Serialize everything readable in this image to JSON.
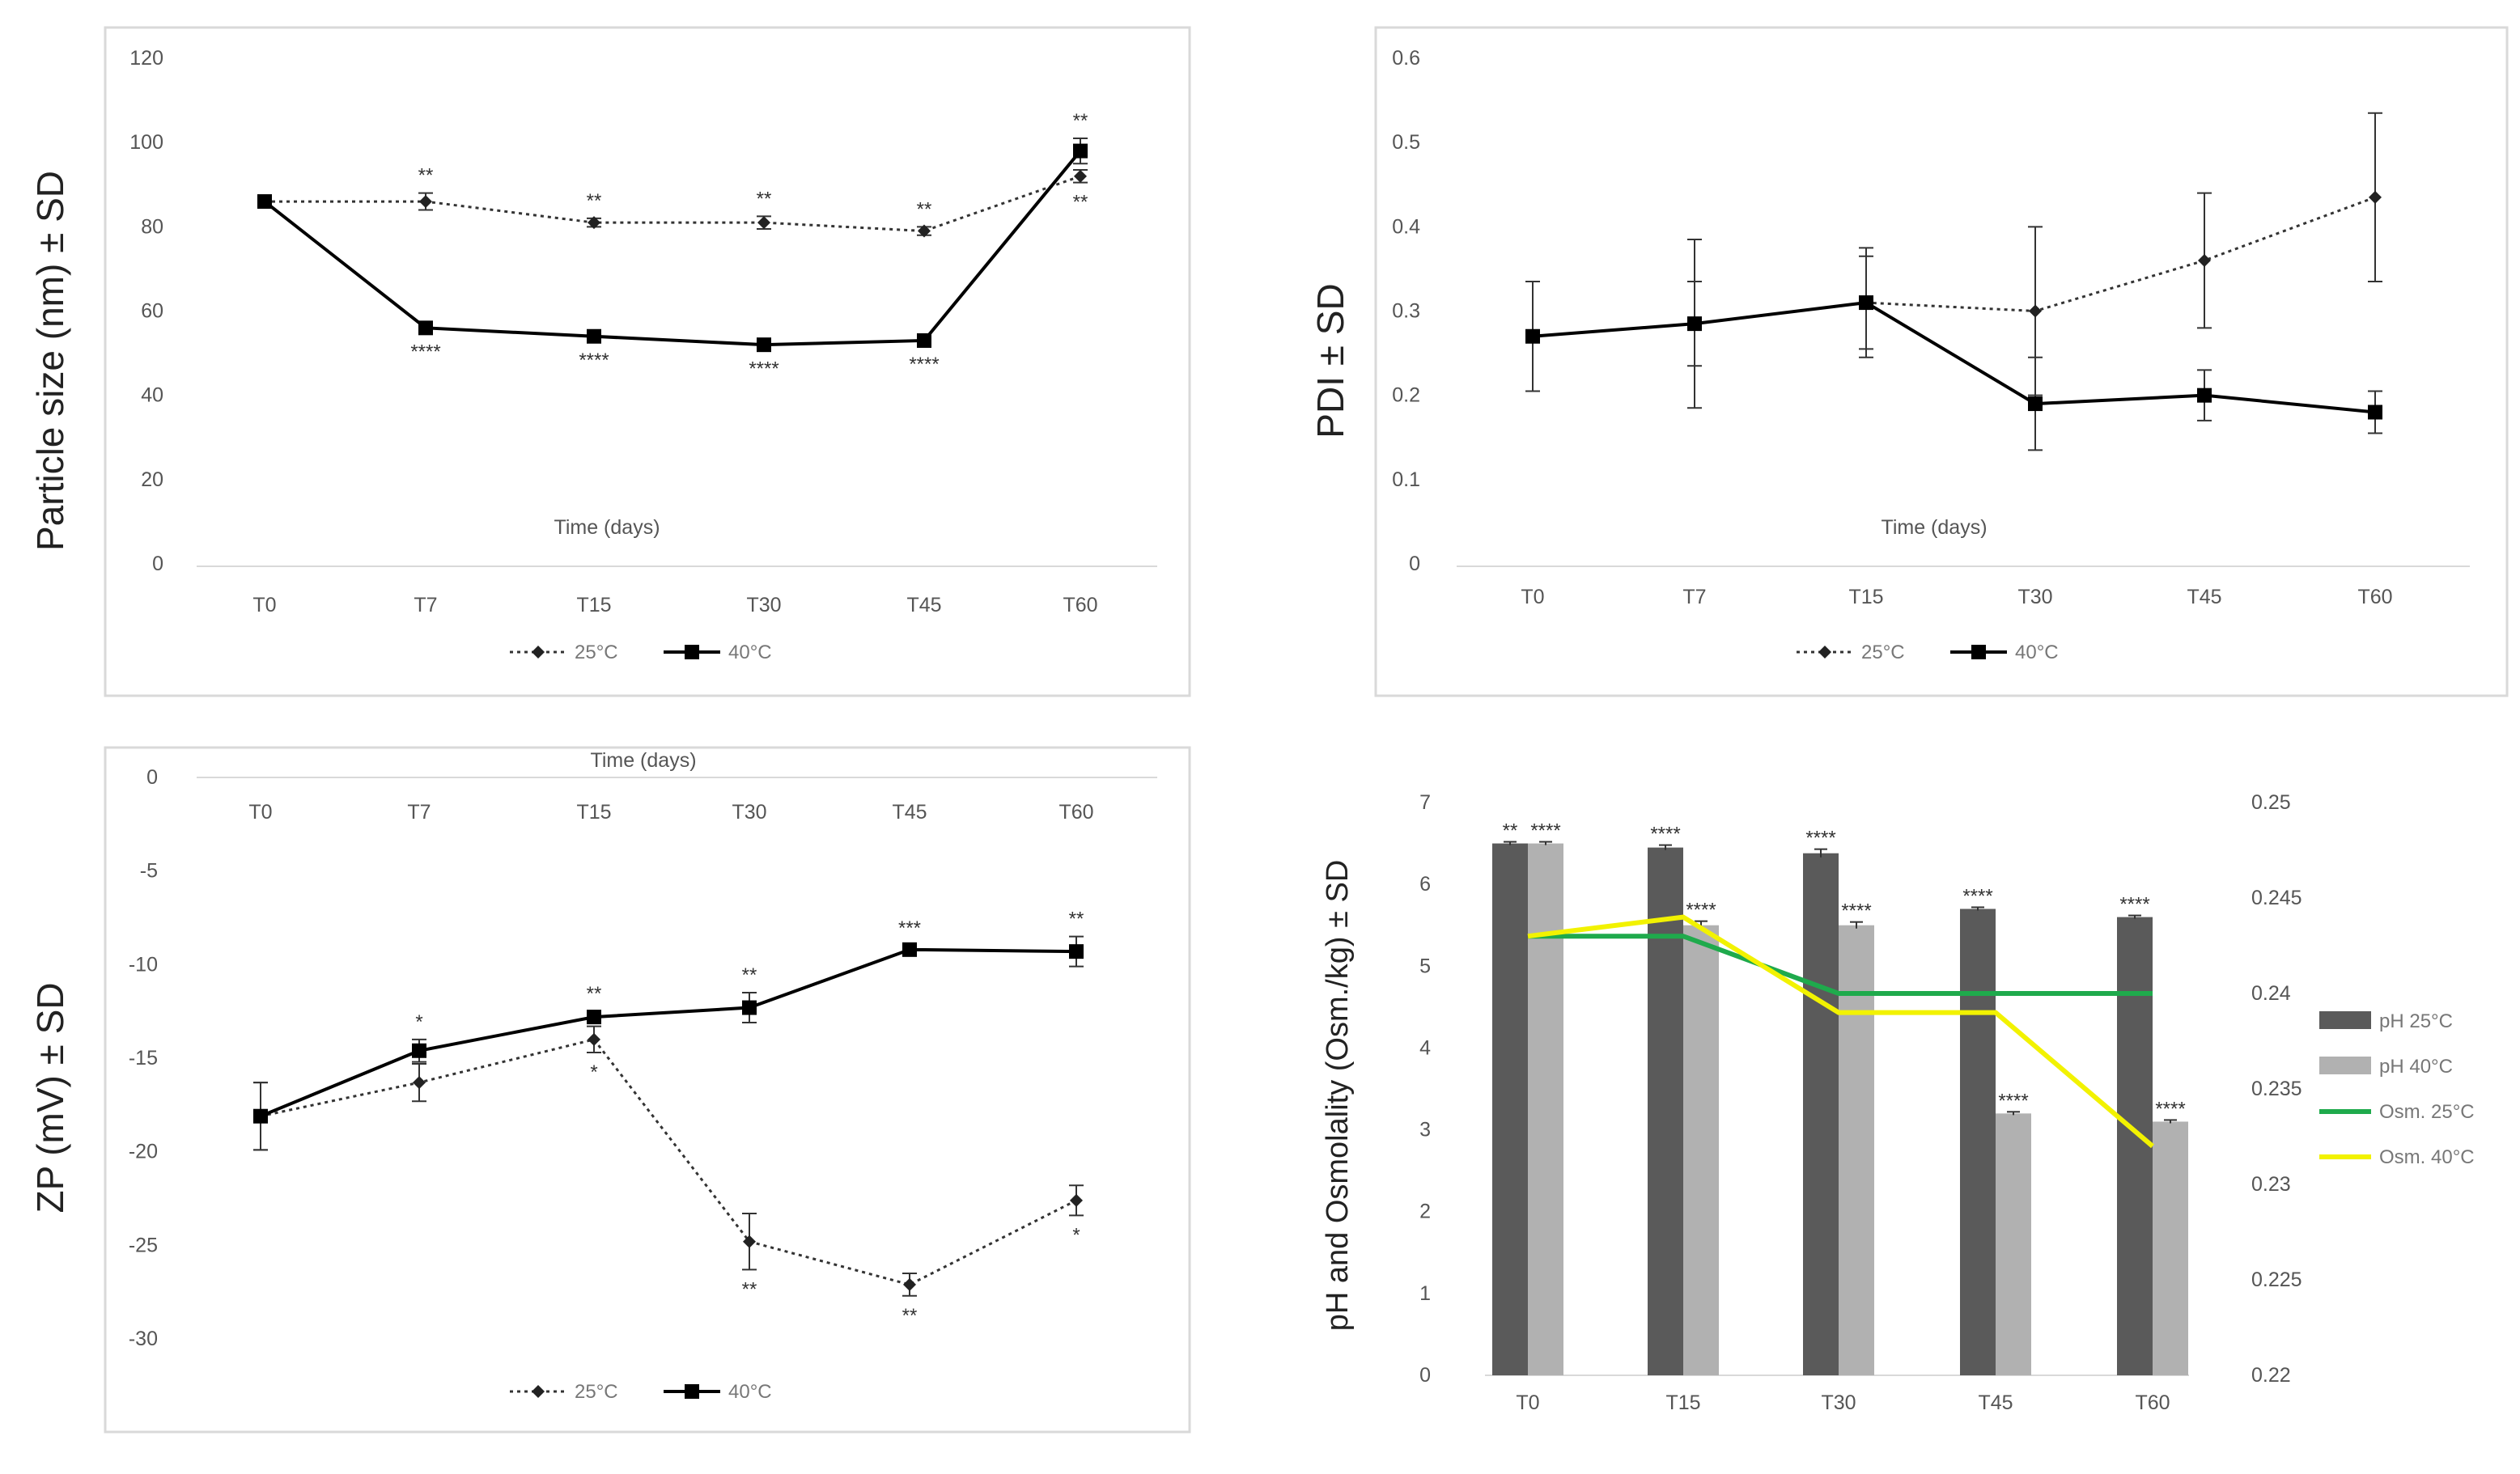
{
  "chart_data": [
    {
      "type": "line",
      "title": "",
      "ylabel": "Particle size (nm) ± SD",
      "xlabel": "Time (days)",
      "categories": [
        "T0",
        "T7",
        "T15",
        "T30",
        "T45",
        "T60"
      ],
      "ylim": [
        0,
        120
      ],
      "yticks": [
        0,
        20,
        40,
        60,
        80,
        100,
        120
      ],
      "legend_position": "bottom",
      "series": [
        {
          "name": "25°C",
          "style": "dotted-diamond",
          "values": [
            86,
            86,
            81,
            81,
            79,
            92
          ],
          "errors": [
            1,
            2,
            1,
            1.5,
            1,
            1.5
          ]
        },
        {
          "name": "40°C",
          "style": "solid-square",
          "values": [
            86,
            56,
            54,
            52,
            53,
            98
          ],
          "errors": [
            1,
            1,
            1,
            1,
            1,
            3
          ]
        }
      ],
      "annotations": [
        {
          "series": 0,
          "index": 1,
          "text": "**",
          "pos": "above"
        },
        {
          "series": 0,
          "index": 2,
          "text": "**",
          "pos": "above"
        },
        {
          "series": 0,
          "index": 3,
          "text": "**",
          "pos": "above"
        },
        {
          "series": 0,
          "index": 4,
          "text": "**",
          "pos": "above"
        },
        {
          "series": 0,
          "index": 5,
          "text": "**",
          "pos": "below"
        },
        {
          "series": 1,
          "index": 5,
          "text": "**",
          "pos": "above"
        },
        {
          "series": 1,
          "index": 1,
          "text": "****",
          "pos": "below"
        },
        {
          "series": 1,
          "index": 2,
          "text": "****",
          "pos": "below"
        },
        {
          "series": 1,
          "index": 3,
          "text": "****",
          "pos": "below"
        },
        {
          "series": 1,
          "index": 4,
          "text": "****",
          "pos": "below"
        }
      ]
    },
    {
      "type": "line",
      "title": "",
      "ylabel": "PDI ± SD",
      "xlabel": "Time (days)",
      "categories": [
        "T0",
        "T7",
        "T15",
        "T30",
        "T45",
        "T60"
      ],
      "ylim": [
        0,
        0.6
      ],
      "yticks": [
        0,
        0.1,
        0.2,
        0.3,
        0.4,
        0.5,
        0.6
      ],
      "legend_position": "bottom",
      "series": [
        {
          "name": "25°C",
          "style": "dotted-diamond",
          "values": [
            0.27,
            0.285,
            0.31,
            0.3,
            0.36,
            0.435
          ],
          "errors": [
            0.065,
            0.05,
            0.065,
            0.1,
            0.08,
            0.1
          ]
        },
        {
          "name": "40°C",
          "style": "solid-square",
          "values": [
            0.27,
            0.285,
            0.31,
            0.19,
            0.2,
            0.18
          ],
          "errors": [
            0.065,
            0.1,
            0.055,
            0.055,
            0.03,
            0.025
          ]
        }
      ],
      "annotations": []
    },
    {
      "type": "line",
      "title": "",
      "ylabel": "ZP (mV) ± SD",
      "xlabel": "Time (days)",
      "categories": [
        "T0",
        "T7",
        "T15",
        "T30",
        "T45",
        "T60"
      ],
      "ylim": [
        -30,
        0
      ],
      "yticks": [
        0,
        -5,
        -10,
        -15,
        -20,
        -25,
        -30
      ],
      "xaxis_position": "top",
      "legend_position": "bottom",
      "series": [
        {
          "name": "25°C",
          "style": "dotted-diamond",
          "values": [
            -18.1,
            -16.3,
            -14,
            -24.8,
            -27.1,
            -22.6
          ],
          "errors": [
            1.8,
            1,
            0.7,
            1.5,
            0.6,
            0.8
          ]
        },
        {
          "name": "40°C",
          "style": "solid-square",
          "values": [
            -18.1,
            -14.6,
            -12.8,
            -12.3,
            -9.2,
            -9.3
          ],
          "errors": [
            1.8,
            0.6,
            0.3,
            0.8,
            0.2,
            0.8
          ]
        }
      ],
      "annotations": [
        {
          "series": 1,
          "index": 1,
          "text": "*",
          "pos": "above"
        },
        {
          "series": 1,
          "index": 2,
          "text": "**",
          "pos": "above"
        },
        {
          "series": 1,
          "index": 3,
          "text": "**",
          "pos": "above"
        },
        {
          "series": 1,
          "index": 4,
          "text": "***",
          "pos": "above"
        },
        {
          "series": 1,
          "index": 5,
          "text": "**",
          "pos": "above"
        },
        {
          "series": 0,
          "index": 2,
          "text": "*",
          "pos": "below"
        },
        {
          "series": 0,
          "index": 3,
          "text": "**",
          "pos": "below"
        },
        {
          "series": 0,
          "index": 4,
          "text": "**",
          "pos": "below"
        },
        {
          "series": 0,
          "index": 5,
          "text": "*",
          "pos": "below"
        }
      ]
    },
    {
      "type": "bar",
      "title": "",
      "ylabel": "pH and Osmolality (Osm./kg) ± SD",
      "categories": [
        "T0",
        "T15",
        "T30",
        "T45",
        "T60"
      ],
      "ylim": [
        0,
        7
      ],
      "yticks": [
        0,
        1,
        2,
        3,
        4,
        5,
        6,
        7
      ],
      "y2lim": [
        0.22,
        0.25
      ],
      "y2ticks": [
        "0.22",
        "0.225",
        "0.23",
        "0.235",
        "0.24",
        "0.245",
        "0.25"
      ],
      "legend_position": "right",
      "bar_series": [
        {
          "name": "pH 25°C",
          "color": "#5a5a5a",
          "values": [
            6.5,
            6.45,
            6.38,
            5.7,
            5.6
          ],
          "errors": [
            0.02,
            0.03,
            0.05,
            0.02,
            0.02
          ],
          "stars": [
            "**",
            "****",
            "****",
            "****",
            "****"
          ]
        },
        {
          "name": "pH 40°C",
          "color": "#b1b1b1",
          "values": [
            6.5,
            5.5,
            5.5,
            3.2,
            3.1
          ],
          "errors": [
            0.02,
            0.05,
            0.04,
            0.02,
            0.02
          ],
          "stars": [
            "****",
            "****",
            "****",
            "****",
            "****"
          ]
        }
      ],
      "line_series": [
        {
          "name": "Osm. 25°C",
          "color": "#1faa4c",
          "values": [
            0.243,
            0.243,
            0.24,
            0.24,
            0.24
          ]
        },
        {
          "name": "Osm. 40°C",
          "color": "#f2f200",
          "values": [
            0.243,
            0.244,
            0.239,
            0.239,
            0.232
          ]
        }
      ]
    }
  ]
}
